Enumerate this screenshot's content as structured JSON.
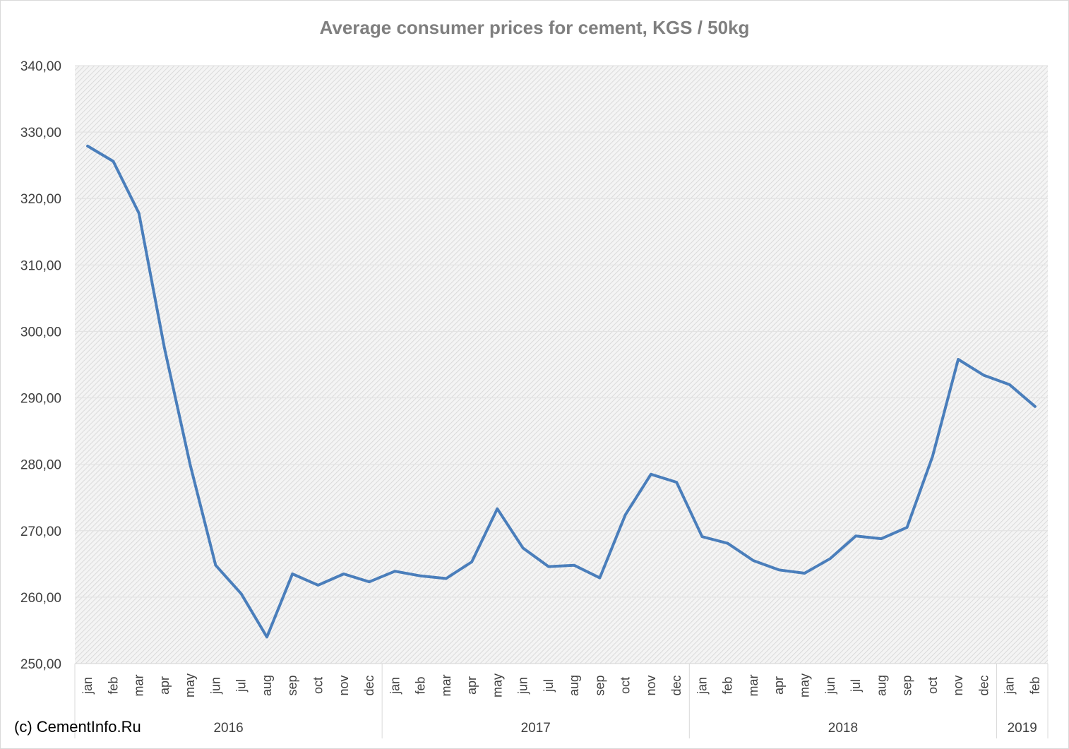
{
  "title": "Average consumer prices for cement, KGS / 50kg",
  "copyright": "(c) CementInfo.Ru",
  "chart_data": {
    "type": "line",
    "title": "Average consumer prices for cement, KGS / 50kg",
    "xlabel": "",
    "ylabel": "",
    "ylim": [
      250,
      340
    ],
    "y_ticks": [
      "250,00",
      "260,00",
      "270,00",
      "280,00",
      "290,00",
      "300,00",
      "310,00",
      "320,00",
      "330,00",
      "340,00"
    ],
    "y_tick_values": [
      250,
      260,
      270,
      280,
      290,
      300,
      310,
      320,
      330,
      340
    ],
    "grid": true,
    "line_color": "#4a7ebb",
    "groups": [
      {
        "label": "2016",
        "months": [
          "jan",
          "feb",
          "mar",
          "apr",
          "may",
          "jun",
          "jul",
          "aug",
          "sep",
          "oct",
          "nov",
          "dec"
        ]
      },
      {
        "label": "2017",
        "months": [
          "jan",
          "feb",
          "mar",
          "apr",
          "may",
          "jun",
          "jul",
          "aug",
          "sep",
          "oct",
          "nov",
          "dec"
        ]
      },
      {
        "label": "2018",
        "months": [
          "jan",
          "feb",
          "mar",
          "apr",
          "may",
          "jun",
          "jul",
          "aug",
          "sep",
          "oct",
          "nov",
          "dec"
        ]
      },
      {
        "label": "2019",
        "months": [
          "jan",
          "feb"
        ]
      }
    ],
    "values": [
      327.9,
      325.6,
      317.8,
      297.5,
      280.0,
      264.8,
      260.5,
      254.0,
      263.5,
      261.8,
      263.5,
      262.3,
      263.9,
      263.2,
      262.8,
      265.3,
      273.3,
      267.4,
      264.6,
      264.8,
      262.9,
      272.4,
      278.5,
      277.3,
      269.1,
      268.1,
      265.5,
      264.1,
      263.6,
      265.8,
      269.2,
      268.8,
      270.5,
      281.2,
      295.8,
      293.4,
      292.0,
      288.7
    ]
  }
}
